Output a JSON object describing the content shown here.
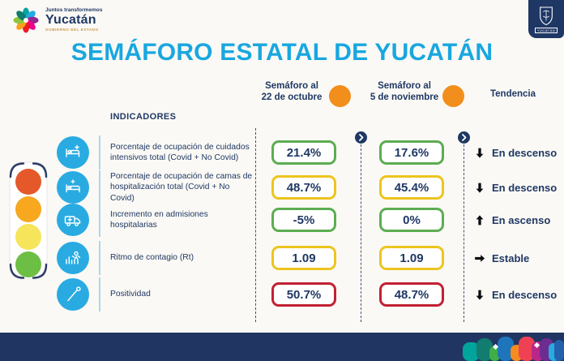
{
  "header": {
    "logo": {
      "tagline": "Juntos transformemos",
      "name": "Yucatán",
      "subtitle": "GOBIERNO DEL ESTADO"
    },
    "badge": {
      "label": "YUCATÁN"
    },
    "title": "SEMÁFORO ESTATAL DE YUCATÁN"
  },
  "columns": {
    "col1": {
      "line1": "Semáforo al",
      "line2": "22 de octubre",
      "status": "orange"
    },
    "col2": {
      "line1": "Semáforo al",
      "line2": "5 de noviembre",
      "status": "orange"
    },
    "trend_label": "Tendencia"
  },
  "indicators_label": "INDICADORES",
  "traffic_light": {
    "colors": [
      "#E4582A",
      "#F7A81F",
      "#F6E45A",
      "#6DBE45"
    ]
  },
  "rows": [
    {
      "icon": "icu-bed-icon",
      "label": "Porcentaje de ocupación de cuidados intensivos total (Covid + No Covid)",
      "value1": "21.4%",
      "value2": "17.6%",
      "level": "green",
      "trend": "down",
      "trend_label": "En descenso"
    },
    {
      "icon": "hospital-bed-icon",
      "label": "Porcentaje de ocupación de camas de hospitalización total (Covid + No Covid)",
      "value1": "48.7%",
      "value2": "45.4%",
      "level": "yellow",
      "trend": "down",
      "trend_label": "En descenso"
    },
    {
      "icon": "ambulance-icon",
      "label": "Incremento en admisiones hospitalarias",
      "value1": "-5%",
      "value2": "0%",
      "level": "green",
      "trend": "up",
      "trend_label": "En ascenso"
    },
    {
      "icon": "contagion-icon",
      "label": "Ritmo de contagio (Rt)",
      "value1": "1.09",
      "value2": "1.09",
      "level": "yellow",
      "trend": "right",
      "trend_label": "Estable"
    },
    {
      "icon": "swab-icon",
      "label": "Positividad",
      "value1": "50.7%",
      "value2": "48.7%",
      "level": "red",
      "trend": "down",
      "trend_label": "En descenso"
    }
  ],
  "colors": {
    "green": "#5CAD51",
    "yellow": "#EDC41F",
    "red": "#C22033",
    "navy": "#1F3864",
    "navy_bar": "#213563",
    "cyan": "#18A7E0",
    "orange": "#F28E1C"
  },
  "chart_data": {
    "type": "table",
    "title": "SEMÁFORO ESTATAL DE YUCATÁN",
    "columns": [
      "Indicador",
      "Semáforo al 22 de octubre",
      "Semáforo al 5 de noviembre",
      "Tendencia"
    ],
    "rows": [
      [
        "Porcentaje de ocupación de cuidados intensivos total (Covid + No Covid)",
        "21.4%",
        "17.6%",
        "En descenso"
      ],
      [
        "Porcentaje de ocupación de camas de hospitalización total (Covid + No Covid)",
        "48.7%",
        "45.4%",
        "En descenso"
      ],
      [
        "Incremento en admisiones hospitalarias",
        "-5%",
        "0%",
        "En ascenso"
      ],
      [
        "Ritmo de contagio (Rt)",
        "1.09",
        "1.09",
        "Estable"
      ],
      [
        "Positividad",
        "50.7%",
        "48.7%",
        "En descenso"
      ]
    ],
    "row_status_colors": [
      "green",
      "yellow",
      "green",
      "yellow",
      "red"
    ],
    "overall_status_oct22": "orange",
    "overall_status_nov5": "orange"
  }
}
